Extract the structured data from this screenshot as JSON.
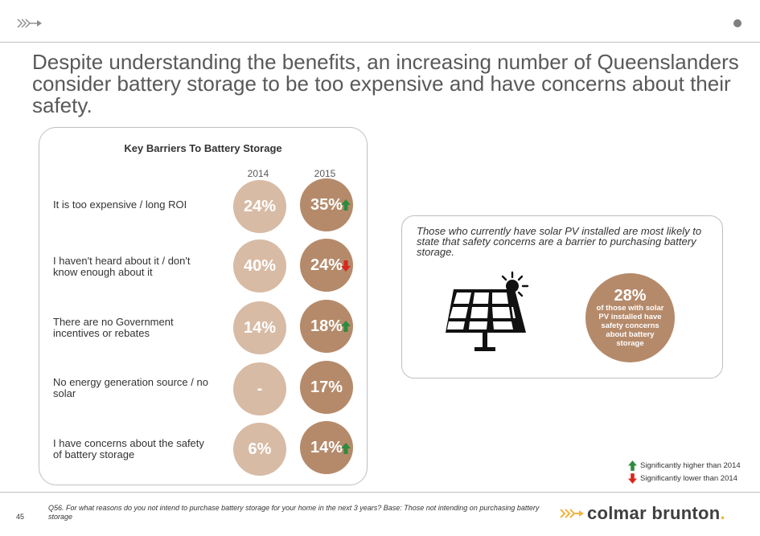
{
  "headline": "Despite understanding the benefits, an increasing number of Queenslanders consider battery storage to be too expensive and have concerns about their safety.",
  "chart_data": {
    "type": "table",
    "title": "Key Barriers To Battery Storage",
    "columns": [
      "2014",
      "2015"
    ],
    "rows": [
      {
        "label": "It is too expensive / long ROI",
        "v2014": "24%",
        "v2015": "35%",
        "significance": "higher"
      },
      {
        "label": "I haven't heard about it / don't know enough about it",
        "v2014": "40%",
        "v2015": "24%",
        "significance": "lower"
      },
      {
        "label": "There are no Government incentives or rebates",
        "v2014": "14%",
        "v2015": "18%",
        "significance": "higher"
      },
      {
        "label": "No energy generation source / no solar",
        "v2014": "-",
        "v2015": "17%",
        "significance": "none"
      },
      {
        "label": "I have concerns about the safety of battery storage",
        "v2014": "6%",
        "v2015": "14%",
        "significance": "higher"
      }
    ]
  },
  "callout": {
    "text": "Those who currently have solar PV installed are most likely to state that safety concerns are a barrier to purchasing battery storage.",
    "stat": "28%",
    "stat_desc": "of those with solar PV installed have safety concerns about battery storage",
    "icon": "solar-panel-icon"
  },
  "legend": {
    "higher": "Significantly higher than 2014",
    "lower": "Significantly lower than 2014"
  },
  "colors": {
    "circle_2014": "#d8bba5",
    "circle_2015": "#b58a6a",
    "sig_higher": "#2e8b3d",
    "sig_lower": "#d9261c",
    "brand_accent": "#f2b33d"
  },
  "footer": {
    "page_number": "45",
    "footnote": "Q56. For what reasons do you not intend to purchase battery storage for your home in the next 3 years? Base: Those not intending on purchasing battery storage",
    "brand": "colmar brunton",
    "brand_dot": "."
  }
}
